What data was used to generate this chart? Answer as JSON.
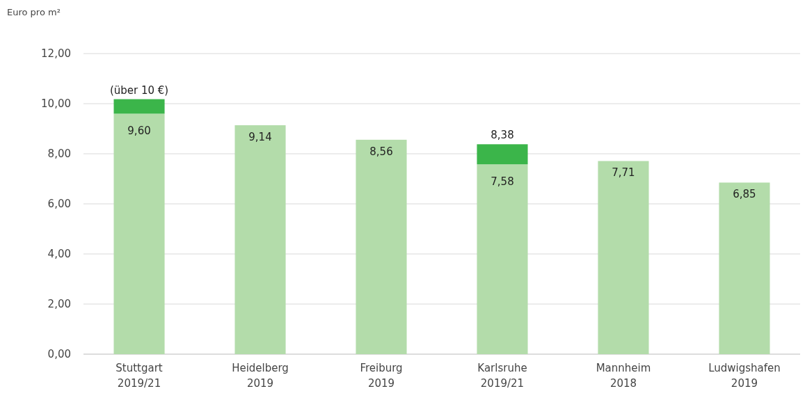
{
  "chart_data": {
    "type": "bar",
    "stacked": true,
    "ylabel": "Euro pro m²",
    "categories": [
      "Stuttgart\n2019/21",
      "Heidelberg\n2019",
      "Freiburg\n2019",
      "Karlsruhe\n2019/21",
      "Mannheim\n2018",
      "Ludwigshafen\n2019"
    ],
    "series": [
      {
        "color": "#b3dcaa",
        "values": [
          9.6,
          9.14,
          8.56,
          7.58,
          7.71,
          6.85
        ],
        "value_labels": [
          "9,60",
          "9,14",
          "8,56",
          "7,58",
          "7,71",
          "6,85"
        ]
      },
      {
        "color": "#3bb54a",
        "values": [
          0.58,
          null,
          null,
          0.8,
          null,
          null
        ]
      }
    ],
    "totals": [
      null,
      null,
      null,
      "8,38",
      null,
      null
    ],
    "annotations": [
      {
        "text": "(über 10 €)",
        "x": "Stuttgart\n2019/21",
        "y": 10.18
      }
    ],
    "ylim": [
      0,
      12
    ],
    "yticks": [
      {
        "value": 0,
        "label": "0,00"
      },
      {
        "value": 2,
        "label": "2,00"
      },
      {
        "value": 4,
        "label": "4,00"
      },
      {
        "value": 6,
        "label": "6,00"
      },
      {
        "value": 8,
        "label": "8,00"
      },
      {
        "value": 10,
        "label": "10,00"
      },
      {
        "value": 12,
        "label": "12,00"
      }
    ],
    "grid": "y"
  }
}
